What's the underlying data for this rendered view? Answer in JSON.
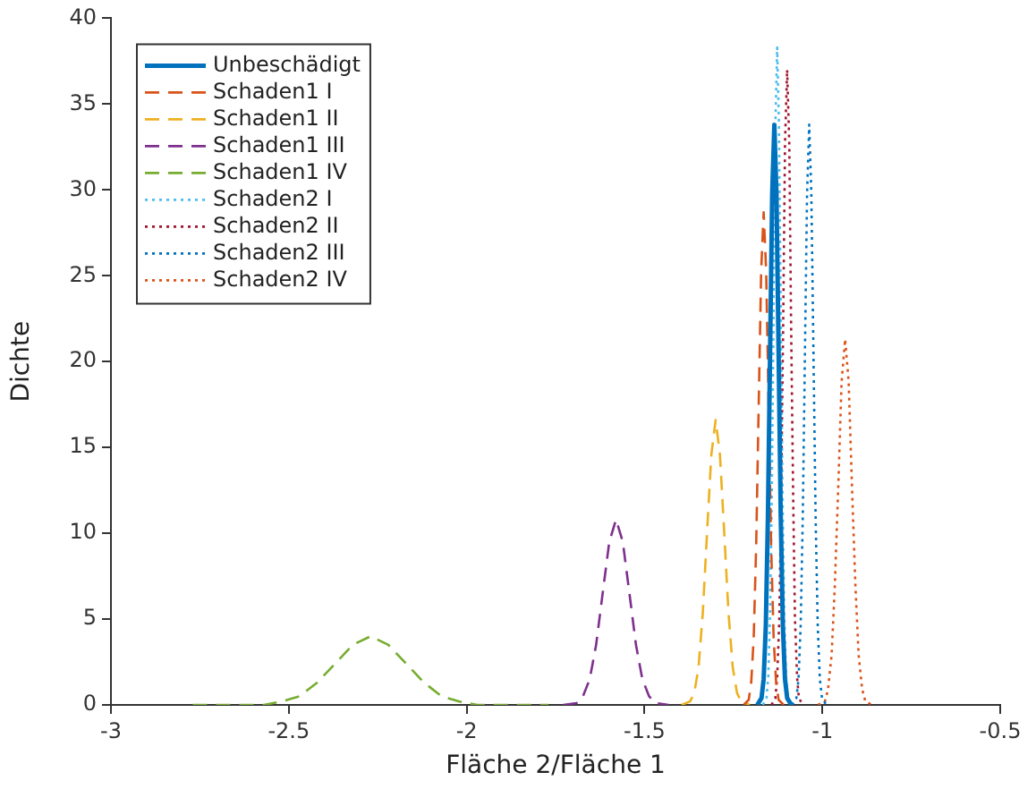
{
  "chart_data": {
    "type": "line",
    "xlabel": "Fläche 2/Fläche 1",
    "ylabel": "Dichte",
    "xlim": [
      -3,
      -0.5
    ],
    "xticks": [
      -3,
      -2.5,
      -2,
      -1.5,
      -1,
      -0.5
    ],
    "ylim": [
      0,
      40
    ],
    "yticks": [
      0,
      5,
      10,
      15,
      20,
      25,
      30,
      35,
      40
    ],
    "grid": false,
    "legend": "top left",
    "marker": "none",
    "series": [
      {
        "name": "Unbeschädigt",
        "color": "#0072bd",
        "line_style": "solid",
        "x": [
          -1.183,
          -1.171,
          -1.165,
          -1.159,
          -1.153,
          -1.147,
          -1.141,
          -1.135,
          -1.129,
          -1.123,
          -1.117,
          -1.111,
          -1.105,
          -1.099,
          -1.087
        ],
        "values": [
          0,
          0.4,
          1.5,
          4.6,
          11.0,
          20.5,
          29.8,
          33.8,
          29.8,
          20.5,
          11.0,
          4.6,
          1.5,
          0.4,
          0
        ]
      },
      {
        "name": "Schaden1 I",
        "color": "#d95319",
        "line_style": "dashed",
        "x": [
          -1.221,
          -1.207,
          -1.2,
          -1.193,
          -1.186,
          -1.179,
          -1.172,
          -1.165,
          -1.158,
          -1.151,
          -1.144,
          -1.137,
          -1.13,
          -1.123,
          -1.109
        ],
        "values": [
          0,
          0.3,
          1.3,
          3.9,
          9.3,
          17.4,
          25.3,
          28.7,
          25.3,
          17.4,
          9.3,
          3.9,
          1.3,
          0.3,
          0
        ]
      },
      {
        "name": "Schaden1 II",
        "color": "#edb120",
        "line_style": "dashed",
        "x": [
          -1.396,
          -1.372,
          -1.36,
          -1.348,
          -1.336,
          -1.324,
          -1.312,
          -1.3,
          -1.288,
          -1.276,
          -1.264,
          -1.252,
          -1.24,
          -1.228,
          -1.204
        ],
        "values": [
          0,
          0.2,
          0.7,
          2.2,
          5.4,
          10.1,
          14.6,
          16.6,
          14.6,
          10.1,
          5.4,
          2.2,
          0.7,
          0.2,
          0
        ]
      },
      {
        "name": "Schaden1 III",
        "color": "#7e2f8e",
        "line_style": "dashed",
        "x": [
          -1.728,
          -1.691,
          -1.673,
          -1.654,
          -1.636,
          -1.617,
          -1.599,
          -1.58,
          -1.561,
          -1.543,
          -1.524,
          -1.506,
          -1.487,
          -1.469,
          -1.432
        ],
        "values": [
          0,
          0.1,
          0.5,
          1.5,
          3.5,
          6.6,
          9.5,
          10.8,
          9.5,
          6.6,
          3.5,
          1.5,
          0.5,
          0.1,
          0
        ]
      },
      {
        "name": "Schaden1 IV",
        "color": "#77ac30",
        "line_style": "dashed",
        "x": [
          -2.77,
          -2.67,
          -2.57,
          -2.52,
          -2.47,
          -2.42,
          -2.37,
          -2.32,
          -2.27,
          -2.22,
          -2.17,
          -2.12,
          -2.07,
          -2.02,
          -1.97,
          -1.87,
          -1.77
        ],
        "values": [
          0,
          0,
          0,
          0.2,
          0.5,
          1.3,
          2.4,
          3.5,
          4.0,
          3.5,
          2.4,
          1.3,
          0.5,
          0.2,
          0,
          0,
          0
        ]
      },
      {
        "name": "Schaden2 I",
        "color": "#4dbeee",
        "line_style": "dotted",
        "x": [
          -1.167,
          -1.157,
          -1.152,
          -1.147,
          -1.142,
          -1.137,
          -1.132,
          -1.127,
          -1.122,
          -1.117,
          -1.112,
          -1.107,
          -1.102,
          -1.097,
          -1.087
        ],
        "values": [
          0,
          0.4,
          1.7,
          5.2,
          12.4,
          23.2,
          33.8,
          38.3,
          33.8,
          23.2,
          12.4,
          5.2,
          1.7,
          0.4,
          0
        ]
      },
      {
        "name": "Schaden2 II",
        "color": "#a2142f",
        "line_style": "dotted",
        "x": [
          -1.143,
          -1.132,
          -1.127,
          -1.121,
          -1.116,
          -1.11,
          -1.105,
          -1.099,
          -1.093,
          -1.088,
          -1.082,
          -1.077,
          -1.071,
          -1.066,
          -1.055
        ],
        "values": [
          0,
          0.4,
          1.6,
          5.0,
          12.0,
          22.4,
          32.7,
          37.0,
          32.7,
          22.4,
          12.0,
          5.0,
          1.6,
          0.4,
          0
        ]
      },
      {
        "name": "Schaden2 III",
        "color": "#0072bd",
        "line_style": "dotted",
        "x": [
          -1.085,
          -1.073,
          -1.067,
          -1.061,
          -1.055,
          -1.049,
          -1.043,
          -1.037,
          -1.031,
          -1.025,
          -1.019,
          -1.013,
          -1.007,
          -1.001,
          -0.989
        ],
        "values": [
          0,
          0.4,
          1.5,
          4.6,
          11.0,
          20.5,
          29.8,
          33.8,
          29.8,
          20.5,
          11.0,
          4.6,
          1.5,
          0.4,
          0
        ]
      },
      {
        "name": "Schaden2 IV",
        "color": "#d95319",
        "line_style": "dotted",
        "x": [
          -1.012,
          -0.993,
          -0.984,
          -0.974,
          -0.965,
          -0.955,
          -0.946,
          -0.936,
          -0.926,
          -0.917,
          -0.907,
          -0.898,
          -0.888,
          -0.879,
          -0.86
        ],
        "values": [
          0,
          0.2,
          0.9,
          2.9,
          6.9,
          12.9,
          18.8,
          21.3,
          18.8,
          12.9,
          6.9,
          2.9,
          0.9,
          0.2,
          0
        ]
      }
    ]
  }
}
